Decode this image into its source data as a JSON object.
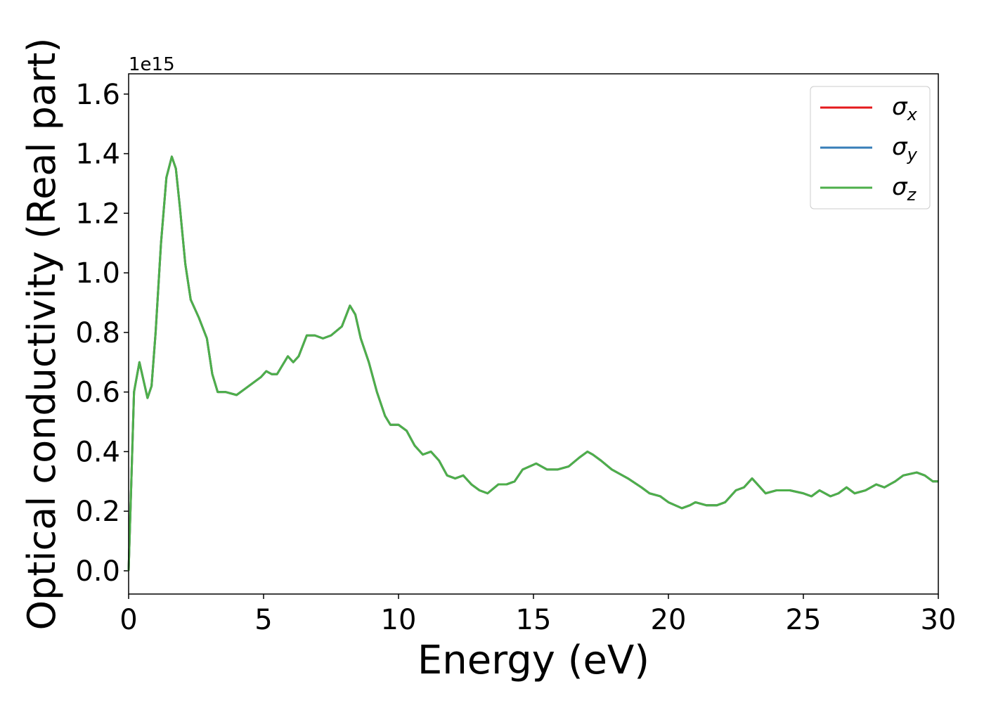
{
  "chart_data": {
    "type": "line",
    "xlabel": "Energy (eV)",
    "ylabel": "Optical conductivity (Real part)",
    "y_offset_label": "1e15",
    "x": [
      0,
      0.1,
      0.2,
      0.4,
      0.55,
      0.7,
      0.85,
      1.0,
      1.2,
      1.4,
      1.6,
      1.75,
      1.9,
      2.1,
      2.3,
      2.6,
      2.9,
      3.1,
      3.3,
      3.6,
      4.0,
      4.3,
      4.6,
      4.9,
      5.1,
      5.3,
      5.5,
      5.7,
      5.9,
      6.1,
      6.3,
      6.6,
      6.9,
      7.2,
      7.5,
      7.9,
      8.2,
      8.4,
      8.6,
      8.9,
      9.2,
      9.5,
      9.7,
      10.0,
      10.3,
      10.6,
      10.9,
      11.2,
      11.5,
      11.8,
      12.1,
      12.4,
      12.7,
      13.0,
      13.3,
      13.7,
      14.0,
      14.3,
      14.6,
      15.1,
      15.5,
      15.9,
      16.3,
      16.7,
      17.0,
      17.2,
      17.5,
      17.9,
      18.5,
      19.0,
      19.3,
      19.7,
      20.0,
      20.5,
      20.8,
      21.0,
      21.4,
      21.8,
      22.1,
      22.5,
      22.8,
      23.1,
      23.3,
      23.6,
      24.0,
      24.5,
      25.0,
      25.3,
      25.6,
      26.0,
      26.3,
      26.6,
      26.9,
      27.3,
      27.7,
      28.0,
      28.4,
      28.7,
      29.2,
      29.5,
      29.8,
      30.0
    ],
    "series": [
      {
        "name": "σx",
        "color": "#e41a1c",
        "values": [
          0.0,
          0.3,
          0.6,
          0.7,
          0.64,
          0.58,
          0.62,
          0.8,
          1.1,
          1.32,
          1.39,
          1.35,
          1.22,
          1.03,
          0.91,
          0.85,
          0.78,
          0.66,
          0.6,
          0.6,
          0.59,
          0.61,
          0.63,
          0.65,
          0.67,
          0.66,
          0.66,
          0.69,
          0.72,
          0.7,
          0.72,
          0.79,
          0.79,
          0.78,
          0.79,
          0.82,
          0.89,
          0.86,
          0.78,
          0.7,
          0.6,
          0.52,
          0.49,
          0.49,
          0.47,
          0.42,
          0.39,
          0.4,
          0.37,
          0.32,
          0.31,
          0.32,
          0.29,
          0.27,
          0.26,
          0.29,
          0.29,
          0.3,
          0.34,
          0.36,
          0.34,
          0.34,
          0.35,
          0.38,
          0.4,
          0.39,
          0.37,
          0.34,
          0.31,
          0.28,
          0.26,
          0.25,
          0.23,
          0.21,
          0.22,
          0.23,
          0.22,
          0.22,
          0.23,
          0.27,
          0.28,
          0.31,
          0.29,
          0.26,
          0.27,
          0.27,
          0.26,
          0.25,
          0.27,
          0.25,
          0.26,
          0.28,
          0.26,
          0.27,
          0.29,
          0.28,
          0.3,
          0.32,
          0.33,
          0.32,
          0.3,
          0.3
        ]
      },
      {
        "name": "σy",
        "color": "#377eb8",
        "values": [
          0.0,
          0.3,
          0.6,
          0.7,
          0.64,
          0.58,
          0.62,
          0.8,
          1.1,
          1.32,
          1.39,
          1.35,
          1.22,
          1.03,
          0.91,
          0.85,
          0.78,
          0.66,
          0.6,
          0.6,
          0.59,
          0.61,
          0.63,
          0.65,
          0.67,
          0.66,
          0.66,
          0.69,
          0.72,
          0.7,
          0.72,
          0.79,
          0.79,
          0.78,
          0.79,
          0.82,
          0.89,
          0.86,
          0.78,
          0.7,
          0.6,
          0.52,
          0.49,
          0.49,
          0.47,
          0.42,
          0.39,
          0.4,
          0.37,
          0.32,
          0.31,
          0.32,
          0.29,
          0.27,
          0.26,
          0.29,
          0.29,
          0.3,
          0.34,
          0.36,
          0.34,
          0.34,
          0.35,
          0.38,
          0.4,
          0.39,
          0.37,
          0.34,
          0.31,
          0.28,
          0.26,
          0.25,
          0.23,
          0.21,
          0.22,
          0.23,
          0.22,
          0.22,
          0.23,
          0.27,
          0.28,
          0.31,
          0.29,
          0.26,
          0.27,
          0.27,
          0.26,
          0.25,
          0.27,
          0.25,
          0.26,
          0.28,
          0.26,
          0.27,
          0.29,
          0.28,
          0.3,
          0.32,
          0.33,
          0.32,
          0.3,
          0.3
        ]
      },
      {
        "name": "σz",
        "color": "#4daf4a",
        "values": [
          0.0,
          0.3,
          0.6,
          0.7,
          0.64,
          0.58,
          0.62,
          0.8,
          1.1,
          1.32,
          1.39,
          1.35,
          1.22,
          1.03,
          0.91,
          0.85,
          0.78,
          0.66,
          0.6,
          0.6,
          0.59,
          0.61,
          0.63,
          0.65,
          0.67,
          0.66,
          0.66,
          0.69,
          0.72,
          0.7,
          0.72,
          0.79,
          0.79,
          0.78,
          0.79,
          0.82,
          0.89,
          0.86,
          0.78,
          0.7,
          0.6,
          0.52,
          0.49,
          0.49,
          0.47,
          0.42,
          0.39,
          0.4,
          0.37,
          0.32,
          0.31,
          0.32,
          0.29,
          0.27,
          0.26,
          0.29,
          0.29,
          0.3,
          0.34,
          0.36,
          0.34,
          0.34,
          0.35,
          0.38,
          0.4,
          0.39,
          0.37,
          0.34,
          0.31,
          0.28,
          0.26,
          0.25,
          0.23,
          0.21,
          0.22,
          0.23,
          0.22,
          0.22,
          0.23,
          0.27,
          0.28,
          0.31,
          0.29,
          0.26,
          0.27,
          0.27,
          0.26,
          0.25,
          0.27,
          0.25,
          0.26,
          0.28,
          0.26,
          0.27,
          0.29,
          0.28,
          0.3,
          0.32,
          0.33,
          0.32,
          0.3,
          0.3
        ]
      }
    ],
    "xlim": [
      0,
      30
    ],
    "xticks": [
      0,
      5,
      10,
      15,
      20,
      25,
      30
    ],
    "ylim": [
      -0.078,
      1.668
    ],
    "yticks": [
      {
        "value": 0,
        "label": "0.0"
      },
      0.2,
      0.4,
      0.6,
      0.8,
      {
        "value": 1,
        "label": "1.0"
      },
      1.2,
      1.4,
      1.6
    ],
    "legend": "upper right"
  }
}
